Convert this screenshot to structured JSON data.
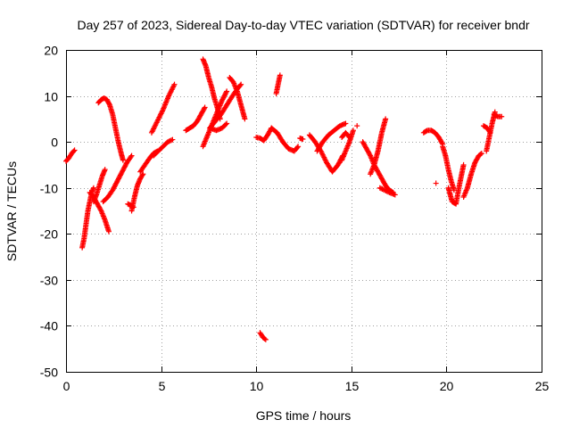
{
  "chart_data": {
    "type": "scatter",
    "title": "Day 257 of 2023, Sidereal Day-to-day VTEC variation (SDTVAR) for receiver bndr",
    "xlabel": "GPS time / hours",
    "ylabel": "SDTVAR / TECUs",
    "xlim": [
      0,
      25
    ],
    "ylim": [
      -50,
      20
    ],
    "xticks": [
      0,
      5,
      10,
      15,
      20,
      25
    ],
    "yticks": [
      -50,
      -40,
      -30,
      -20,
      -10,
      0,
      10,
      20
    ],
    "grid": true,
    "marker": "+",
    "color": "#ff0000",
    "tracks": [
      {
        "x": [
          0.0,
          0.15,
          0.3,
          0.45
        ],
        "y": [
          -4.2,
          -3.5,
          -2.5,
          -1.8
        ]
      },
      {
        "x": [
          0.85,
          0.95,
          1.05,
          1.15,
          1.25,
          1.35,
          1.45
        ],
        "y": [
          -23.0,
          -21.0,
          -18.0,
          -15.0,
          -13.0,
          -11.0,
          -10.0
        ]
      },
      {
        "x": [
          1.25,
          1.45,
          1.65,
          1.85,
          2.05,
          2.25
        ],
        "y": [
          -11.0,
          -12.0,
          -13.5,
          -15.0,
          -17.0,
          -19.5
        ]
      },
      {
        "x": [
          1.45,
          1.6,
          1.75,
          1.9,
          2.05
        ],
        "y": [
          -13.0,
          -11.5,
          -9.5,
          -7.5,
          -6.0
        ]
      },
      {
        "x": [
          1.7,
          1.85,
          2.0,
          2.15,
          2.3,
          2.45,
          2.6,
          2.75,
          2.9,
          3.0
        ],
        "y": [
          8.5,
          9.2,
          9.5,
          9.2,
          8.0,
          6.0,
          3.0,
          0.0,
          -2.5,
          -4.0
        ]
      },
      {
        "x": [
          1.95,
          2.2,
          2.45,
          2.7,
          2.95,
          3.2,
          3.45
        ],
        "y": [
          -13.0,
          -12.0,
          -10.5,
          -8.5,
          -6.5,
          -4.5,
          -3.0
        ]
      },
      {
        "x": [
          3.25,
          3.4,
          3.55
        ],
        "y": [
          -13.5,
          -13.8,
          -14.2
        ]
      },
      {
        "x": [
          3.45,
          3.6,
          3.75,
          3.9,
          4.05
        ],
        "y": [
          -15.0,
          -12.0,
          -9.5,
          -8.0,
          -7.0
        ]
      },
      {
        "x": [
          3.9,
          4.15,
          4.4,
          4.6,
          4.8
        ],
        "y": [
          -6.5,
          -5.0,
          -3.5,
          -2.5,
          -2.0
        ]
      },
      {
        "x": [
          4.6,
          4.85,
          5.1,
          5.35,
          5.6
        ],
        "y": [
          -3.0,
          -2.0,
          -1.0,
          0.0,
          0.5
        ]
      },
      {
        "x": [
          4.5,
          4.8,
          5.1,
          5.4,
          5.7
        ],
        "y": [
          2.0,
          4.5,
          7.0,
          10.0,
          12.5
        ]
      },
      {
        "x": [
          6.3,
          6.5,
          6.7,
          6.9,
          7.1,
          7.3
        ],
        "y": [
          2.5,
          3.0,
          3.5,
          4.5,
          6.0,
          7.5
        ]
      },
      {
        "x": [
          7.2,
          7.35,
          7.5,
          7.65,
          7.8,
          7.95,
          8.1
        ],
        "y": [
          18.0,
          16.5,
          14.0,
          12.0,
          9.5,
          7.5,
          5.0
        ]
      },
      {
        "x": [
          7.2,
          7.45,
          7.7,
          7.95,
          8.2,
          8.45
        ],
        "y": [
          -1.0,
          1.5,
          4.0,
          6.5,
          9.0,
          11.0
        ]
      },
      {
        "x": [
          7.55,
          7.85,
          8.15,
          8.45,
          8.75,
          9.0,
          9.2
        ],
        "y": [
          3.0,
          4.5,
          6.0,
          8.0,
          10.0,
          11.5,
          12.5
        ]
      },
      {
        "x": [
          8.6,
          8.8,
          9.0,
          9.2,
          9.4
        ],
        "y": [
          14.0,
          13.0,
          11.0,
          8.0,
          5.0
        ]
      },
      {
        "x": [
          7.6,
          7.9,
          8.2,
          8.45
        ],
        "y": [
          3.0,
          2.5,
          3.0,
          4.0
        ]
      },
      {
        "x": [
          10.0,
          10.2,
          10.4,
          10.6,
          10.8
        ],
        "y": [
          1.0,
          0.8,
          0.3,
          1.5,
          3.0
        ]
      },
      {
        "x": [
          10.8,
          11.1,
          11.4,
          11.7,
          12.0,
          12.2
        ],
        "y": [
          3.0,
          2.0,
          0.0,
          -1.5,
          -2.0,
          -1.0
        ]
      },
      {
        "x": [
          10.2,
          10.35,
          10.5
        ],
        "y": [
          -41.5,
          -42.5,
          -43.0
        ]
      },
      {
        "x": [
          11.05,
          11.15,
          11.25
        ],
        "y": [
          10.5,
          12.5,
          14.5
        ]
      },
      {
        "x": [
          12.3,
          12.45
        ],
        "y": [
          0.8,
          0.6
        ]
      },
      {
        "x": [
          12.8,
          13.1,
          13.4,
          13.7,
          14.0,
          14.3,
          14.55
        ],
        "y": [
          1.5,
          0.0,
          -2.0,
          -4.5,
          -6.5,
          -5.0,
          -3.0
        ]
      },
      {
        "x": [
          13.2,
          13.5,
          13.8,
          14.1,
          14.4,
          14.7
        ],
        "y": [
          -2.0,
          0.0,
          1.5,
          2.5,
          3.5,
          4.0
        ]
      },
      {
        "x": [
          14.5,
          14.7,
          14.9
        ],
        "y": [
          1.0,
          2.0,
          1.0
        ]
      },
      {
        "x": [
          14.5,
          14.7,
          14.9,
          15.1
        ],
        "y": [
          -4.0,
          -2.0,
          0.0,
          2.5
        ]
      },
      {
        "x": [
          15.3
        ],
        "y": [
          3.5
        ]
      },
      {
        "x": [
          15.6,
          15.8,
          16.0,
          16.2,
          16.4,
          16.6,
          16.8,
          17.0,
          17.2
        ],
        "y": [
          0.0,
          -1.5,
          -3.0,
          -5.0,
          -6.5,
          -8.0,
          -9.5,
          -10.5,
          -11.0
        ]
      },
      {
        "x": [
          16.0,
          16.2,
          16.4,
          16.6,
          16.8
        ],
        "y": [
          -7.0,
          -5.0,
          -2.0,
          2.0,
          5.0
        ]
      },
      {
        "x": [
          16.5,
          16.75,
          17.0,
          17.3
        ],
        "y": [
          -10.0,
          -10.5,
          -11.0,
          -11.5
        ]
      },
      {
        "x": [
          18.8,
          19.0,
          19.2,
          19.4,
          19.6,
          19.8
        ],
        "y": [
          2.0,
          2.5,
          2.5,
          2.0,
          1.0,
          -0.5
        ]
      },
      {
        "x": [
          19.8,
          19.95,
          20.1,
          20.25,
          20.4
        ],
        "y": [
          -1.0,
          -3.0,
          -6.0,
          -8.5,
          -10.5
        ]
      },
      {
        "x": [
          19.45
        ],
        "y": [
          -9.0
        ]
      },
      {
        "x": [
          20.1,
          20.3,
          20.5,
          20.7,
          20.9
        ],
        "y": [
          -10.0,
          -13.0,
          -13.5,
          -9.0,
          -5.0
        ]
      },
      {
        "x": [
          20.9,
          21.1,
          21.3,
          21.5,
          21.7,
          21.85
        ],
        "y": [
          -12.0,
          -10.0,
          -7.0,
          -4.5,
          -3.0,
          -2.5
        ]
      },
      {
        "x": [
          21.95,
          22.15,
          22.3
        ],
        "y": [
          3.5,
          3.0,
          2.0
        ]
      },
      {
        "x": [
          22.1,
          22.25,
          22.4,
          22.55
        ],
        "y": [
          -2.0,
          1.0,
          4.0,
          6.5
        ]
      },
      {
        "x": [
          22.5,
          22.7,
          22.9
        ],
        "y": [
          6.0,
          5.5,
          5.5
        ]
      }
    ]
  }
}
